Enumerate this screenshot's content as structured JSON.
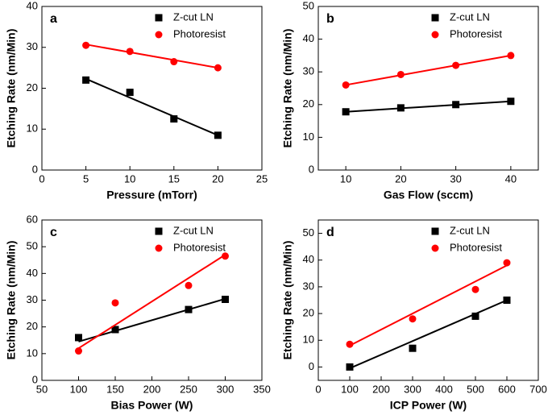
{
  "chart_data": [
    {
      "type": "scatter",
      "panel_label": "a",
      "x_label": "Pressure (mTorr)",
      "y_label": "Etching Rate (nm/Min)",
      "xlim": [
        0,
        25
      ],
      "xticks": [
        0,
        5,
        10,
        15,
        20,
        25
      ],
      "ylim": [
        0,
        40
      ],
      "yticks": [
        0,
        10,
        20,
        30,
        40
      ],
      "legend": "upper right",
      "series": [
        {
          "name": "Z-cut LN",
          "color": "#000000",
          "marker": "square",
          "x": [
            5,
            10,
            15,
            20
          ],
          "values": [
            22,
            19,
            12.5,
            8.5
          ],
          "fit": {
            "x": [
              5,
              20
            ],
            "values": [
              22.3,
              8.5
            ]
          }
        },
        {
          "name": "Photoresist",
          "color": "#ff0000",
          "marker": "circle",
          "x": [
            5,
            10,
            15,
            20
          ],
          "values": [
            30.5,
            29,
            26.5,
            25
          ],
          "fit": {
            "x": [
              5,
              20
            ],
            "values": [
              30.7,
              25
            ]
          }
        }
      ]
    },
    {
      "type": "scatter",
      "panel_label": "b",
      "x_label": "Gas Flow (sccm)",
      "y_label": "Etching Rate (nm/Min)",
      "xlim": [
        5,
        45
      ],
      "xticks": [
        10,
        20,
        30,
        40
      ],
      "ylim": [
        0,
        50
      ],
      "yticks": [
        0,
        10,
        20,
        30,
        40,
        50
      ],
      "legend": "upper right",
      "series": [
        {
          "name": "Z-cut LN",
          "color": "#000000",
          "marker": "square",
          "x": [
            10,
            20,
            30,
            40
          ],
          "values": [
            17.8,
            19,
            20,
            21
          ],
          "fit": {
            "x": [
              10,
              40
            ],
            "values": [
              17.8,
              21
            ]
          }
        },
        {
          "name": "Photoresist",
          "color": "#ff0000",
          "marker": "circle",
          "x": [
            10,
            20,
            30,
            40
          ],
          "values": [
            26,
            29.2,
            32,
            35
          ],
          "fit": {
            "x": [
              10,
              40
            ],
            "values": [
              26,
              35
            ]
          }
        }
      ]
    },
    {
      "type": "scatter",
      "panel_label": "c",
      "x_label": "Bias Power (W)",
      "y_label": "Etching Rate (nm/Min)",
      "xlim": [
        50,
        350
      ],
      "xticks": [
        50,
        100,
        150,
        200,
        250,
        300,
        350
      ],
      "ylim": [
        0,
        60
      ],
      "yticks": [
        0,
        10,
        20,
        30,
        40,
        50,
        60
      ],
      "legend": "upper right",
      "series": [
        {
          "name": "Z-cut LN",
          "color": "#000000",
          "marker": "square",
          "x": [
            100,
            150,
            250,
            300
          ],
          "values": [
            16,
            19,
            26.5,
            30.3
          ],
          "fit": {
            "x": [
              100,
              300
            ],
            "values": [
              14.5,
              30.5
            ]
          }
        },
        {
          "name": "Photoresist",
          "color": "#ff0000",
          "marker": "circle",
          "x": [
            100,
            150,
            250,
            300
          ],
          "values": [
            11,
            29,
            35.5,
            46.5
          ],
          "fit": {
            "x": [
              100,
              300
            ],
            "values": [
              12,
              47
            ]
          }
        }
      ]
    },
    {
      "type": "scatter",
      "panel_label": "d",
      "x_label": "ICP Power (W)",
      "y_label": "Etching Rate (nm/Min)",
      "xlim": [
        0,
        700
      ],
      "xticks": [
        0,
        100,
        200,
        300,
        400,
        500,
        600,
        700
      ],
      "ylim": [
        -5,
        55
      ],
      "yticks": [
        0,
        10,
        20,
        30,
        40,
        50
      ],
      "legend": "upper right",
      "series": [
        {
          "name": "Z-cut LN",
          "color": "#000000",
          "marker": "square",
          "x": [
            100,
            300,
            500,
            600
          ],
          "values": [
            0,
            7,
            19,
            25
          ],
          "fit": {
            "x": [
              100,
              600
            ],
            "values": [
              -0.5,
              25
            ]
          }
        },
        {
          "name": "Photoresist",
          "color": "#ff0000",
          "marker": "circle",
          "x": [
            100,
            300,
            500,
            600
          ],
          "values": [
            8.5,
            18,
            29,
            39
          ],
          "fit": {
            "x": [
              100,
              600
            ],
            "values": [
              8,
              38
            ]
          }
        }
      ]
    }
  ]
}
